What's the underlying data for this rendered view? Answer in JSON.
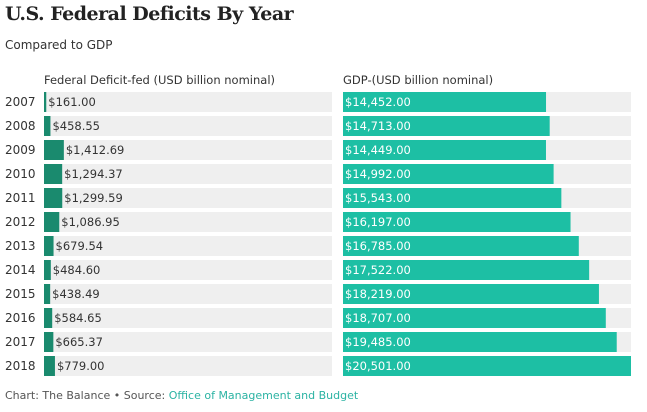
{
  "chart_data": {
    "type": "bar",
    "title": "U.S. Federal Deficits By Year",
    "subtitle": "Compared to GDP",
    "categories": [
      "2007",
      "2008",
      "2009",
      "2010",
      "2011",
      "2012",
      "2013",
      "2014",
      "2015",
      "2016",
      "2017",
      "2018"
    ],
    "series": [
      {
        "name": "Federal Deficit-fed (USD billion nominal)",
        "values": [
          161.0,
          458.55,
          1412.69,
          1294.37,
          1299.59,
          1086.95,
          679.54,
          484.6,
          438.49,
          584.65,
          665.37,
          779.0
        ],
        "labels": [
          "$161.00",
          "$458.55",
          "$1,412.69",
          "$1,294.37",
          "$1,299.59",
          "$1,086.95",
          "$679.54",
          "$484.60",
          "$438.49",
          "$584.65",
          "$665.37",
          "$779.00"
        ],
        "color": "#1a8a6e",
        "xlim": [
          0,
          20501
        ]
      },
      {
        "name": "GDP-(USD billion nominal)",
        "values": [
          14452.0,
          14713.0,
          14449.0,
          14992.0,
          15543.0,
          16197.0,
          16785.0,
          17522.0,
          18219.0,
          18707.0,
          19485.0,
          20501.0
        ],
        "labels": [
          "$14,452.00",
          "$14,713.00",
          "$14,449.00",
          "$14,992.00",
          "$15,543.00",
          "$16,197.00",
          "$16,785.00",
          "$17,522.00",
          "$18,219.00",
          "$18,707.00",
          "$19,485.00",
          "$20,501.00"
        ],
        "color": "#1dbfa4",
        "xlim": [
          0,
          20501
        ]
      }
    ],
    "row_background": "#efefef"
  },
  "footer": {
    "prefix": "Chart: The Balance • Source: ",
    "source": "Office of Management and Budget"
  }
}
